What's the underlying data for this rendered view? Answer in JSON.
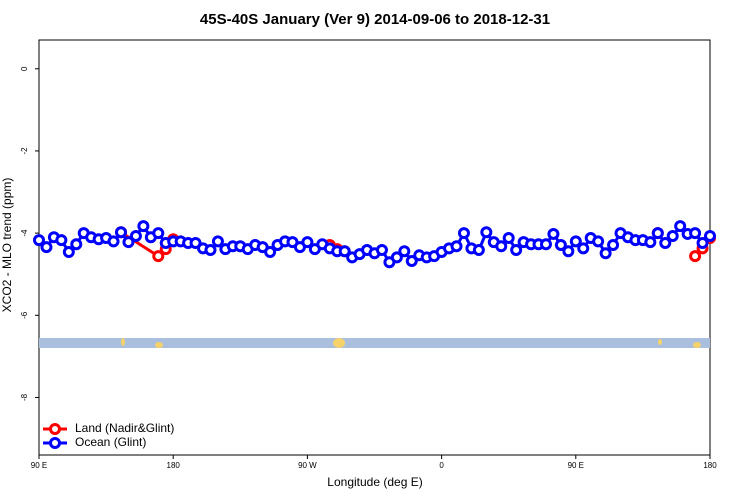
{
  "chart_data": {
    "type": "line",
    "title": "45S-40S January (Ver 9)   2014-09-06 to 2018-12-31",
    "x_label": "Longitude (deg E)",
    "y_label": "XCO2 - MLO trend (ppm)",
    "xlim": [
      90,
      540
    ],
    "ylim": [
      -9.4,
      0.7
    ],
    "xticks": [
      {
        "value": 90,
        "label": "90 E"
      },
      {
        "value": 180,
        "label": "180"
      },
      {
        "value": 270,
        "label": "90 W"
      },
      {
        "value": 360,
        "label": "0"
      },
      {
        "value": 450,
        "label": "90 E"
      },
      {
        "value": 540,
        "label": "180"
      }
    ],
    "yticks": [
      0,
      -2,
      -4,
      -6,
      -8
    ],
    "legend": "bottomleft",
    "series": [
      {
        "name": "Land (Nadir&Glint)",
        "color": "#ff0000",
        "x": [
          145,
          170,
          175,
          180,
          185,
          285,
          290,
          295,
          300,
          505,
          510,
          530,
          535,
          540
        ],
        "values": [
          -3.98,
          -4.56,
          -4.39,
          -4.15,
          null,
          -4.29,
          -4.39,
          -4.44,
          null,
          -4.0,
          null,
          -4.56,
          -4.37,
          -4.12
        ]
      },
      {
        "name": "Ocean (Glint)",
        "color": "#0000ff",
        "x": [
          90,
          95,
          100,
          105,
          110,
          115,
          120,
          125,
          130,
          135,
          140,
          145,
          150,
          155,
          160,
          165,
          170,
          175,
          180,
          185,
          190,
          195,
          200,
          205,
          210,
          215,
          220,
          225,
          230,
          235,
          240,
          245,
          250,
          255,
          260,
          265,
          270,
          275,
          280,
          285,
          290,
          295,
          300,
          305,
          310,
          315,
          320,
          325,
          330,
          335,
          340,
          345,
          350,
          355,
          360,
          365,
          370,
          375,
          380,
          385,
          390,
          395,
          400,
          405,
          410,
          415,
          420,
          425,
          430,
          435,
          440,
          445,
          450,
          455,
          460,
          465,
          470,
          475,
          480,
          485,
          490,
          495,
          500,
          505,
          510,
          515,
          520,
          525,
          530,
          535,
          540
        ],
        "values": [
          -4.17,
          -4.34,
          -4.1,
          -4.17,
          -4.46,
          -4.27,
          -4.0,
          -4.1,
          -4.15,
          -4.12,
          -4.2,
          -3.98,
          -4.22,
          -4.07,
          -3.83,
          -4.1,
          -4.0,
          -4.24,
          -4.2,
          -4.2,
          -4.24,
          -4.24,
          -4.37,
          -4.41,
          -4.2,
          -4.39,
          -4.32,
          -4.32,
          -4.39,
          -4.29,
          -4.34,
          -4.46,
          -4.29,
          -4.2,
          -4.22,
          -4.34,
          -4.22,
          -4.39,
          -4.27,
          -4.37,
          -4.44,
          -4.44,
          -4.59,
          -4.51,
          -4.41,
          -4.49,
          -4.41,
          -4.71,
          -4.59,
          -4.44,
          -4.68,
          -4.54,
          -4.59,
          -4.56,
          -4.46,
          -4.37,
          -4.32,
          -4.0,
          -4.37,
          -4.41,
          -3.98,
          -4.22,
          -4.32,
          -4.12,
          -4.41,
          -4.22,
          -4.27,
          -4.27,
          -4.27,
          -4.02,
          -4.29,
          -4.44,
          -4.2,
          -4.37,
          -4.12,
          -4.2,
          -4.49,
          -4.29,
          -4.0,
          -4.1,
          -4.17,
          -4.17,
          -4.22,
          -4.0,
          -4.24,
          -4.07,
          -3.83,
          -4.02,
          -4.0,
          -4.24,
          -4.07
        ]
      }
    ]
  }
}
